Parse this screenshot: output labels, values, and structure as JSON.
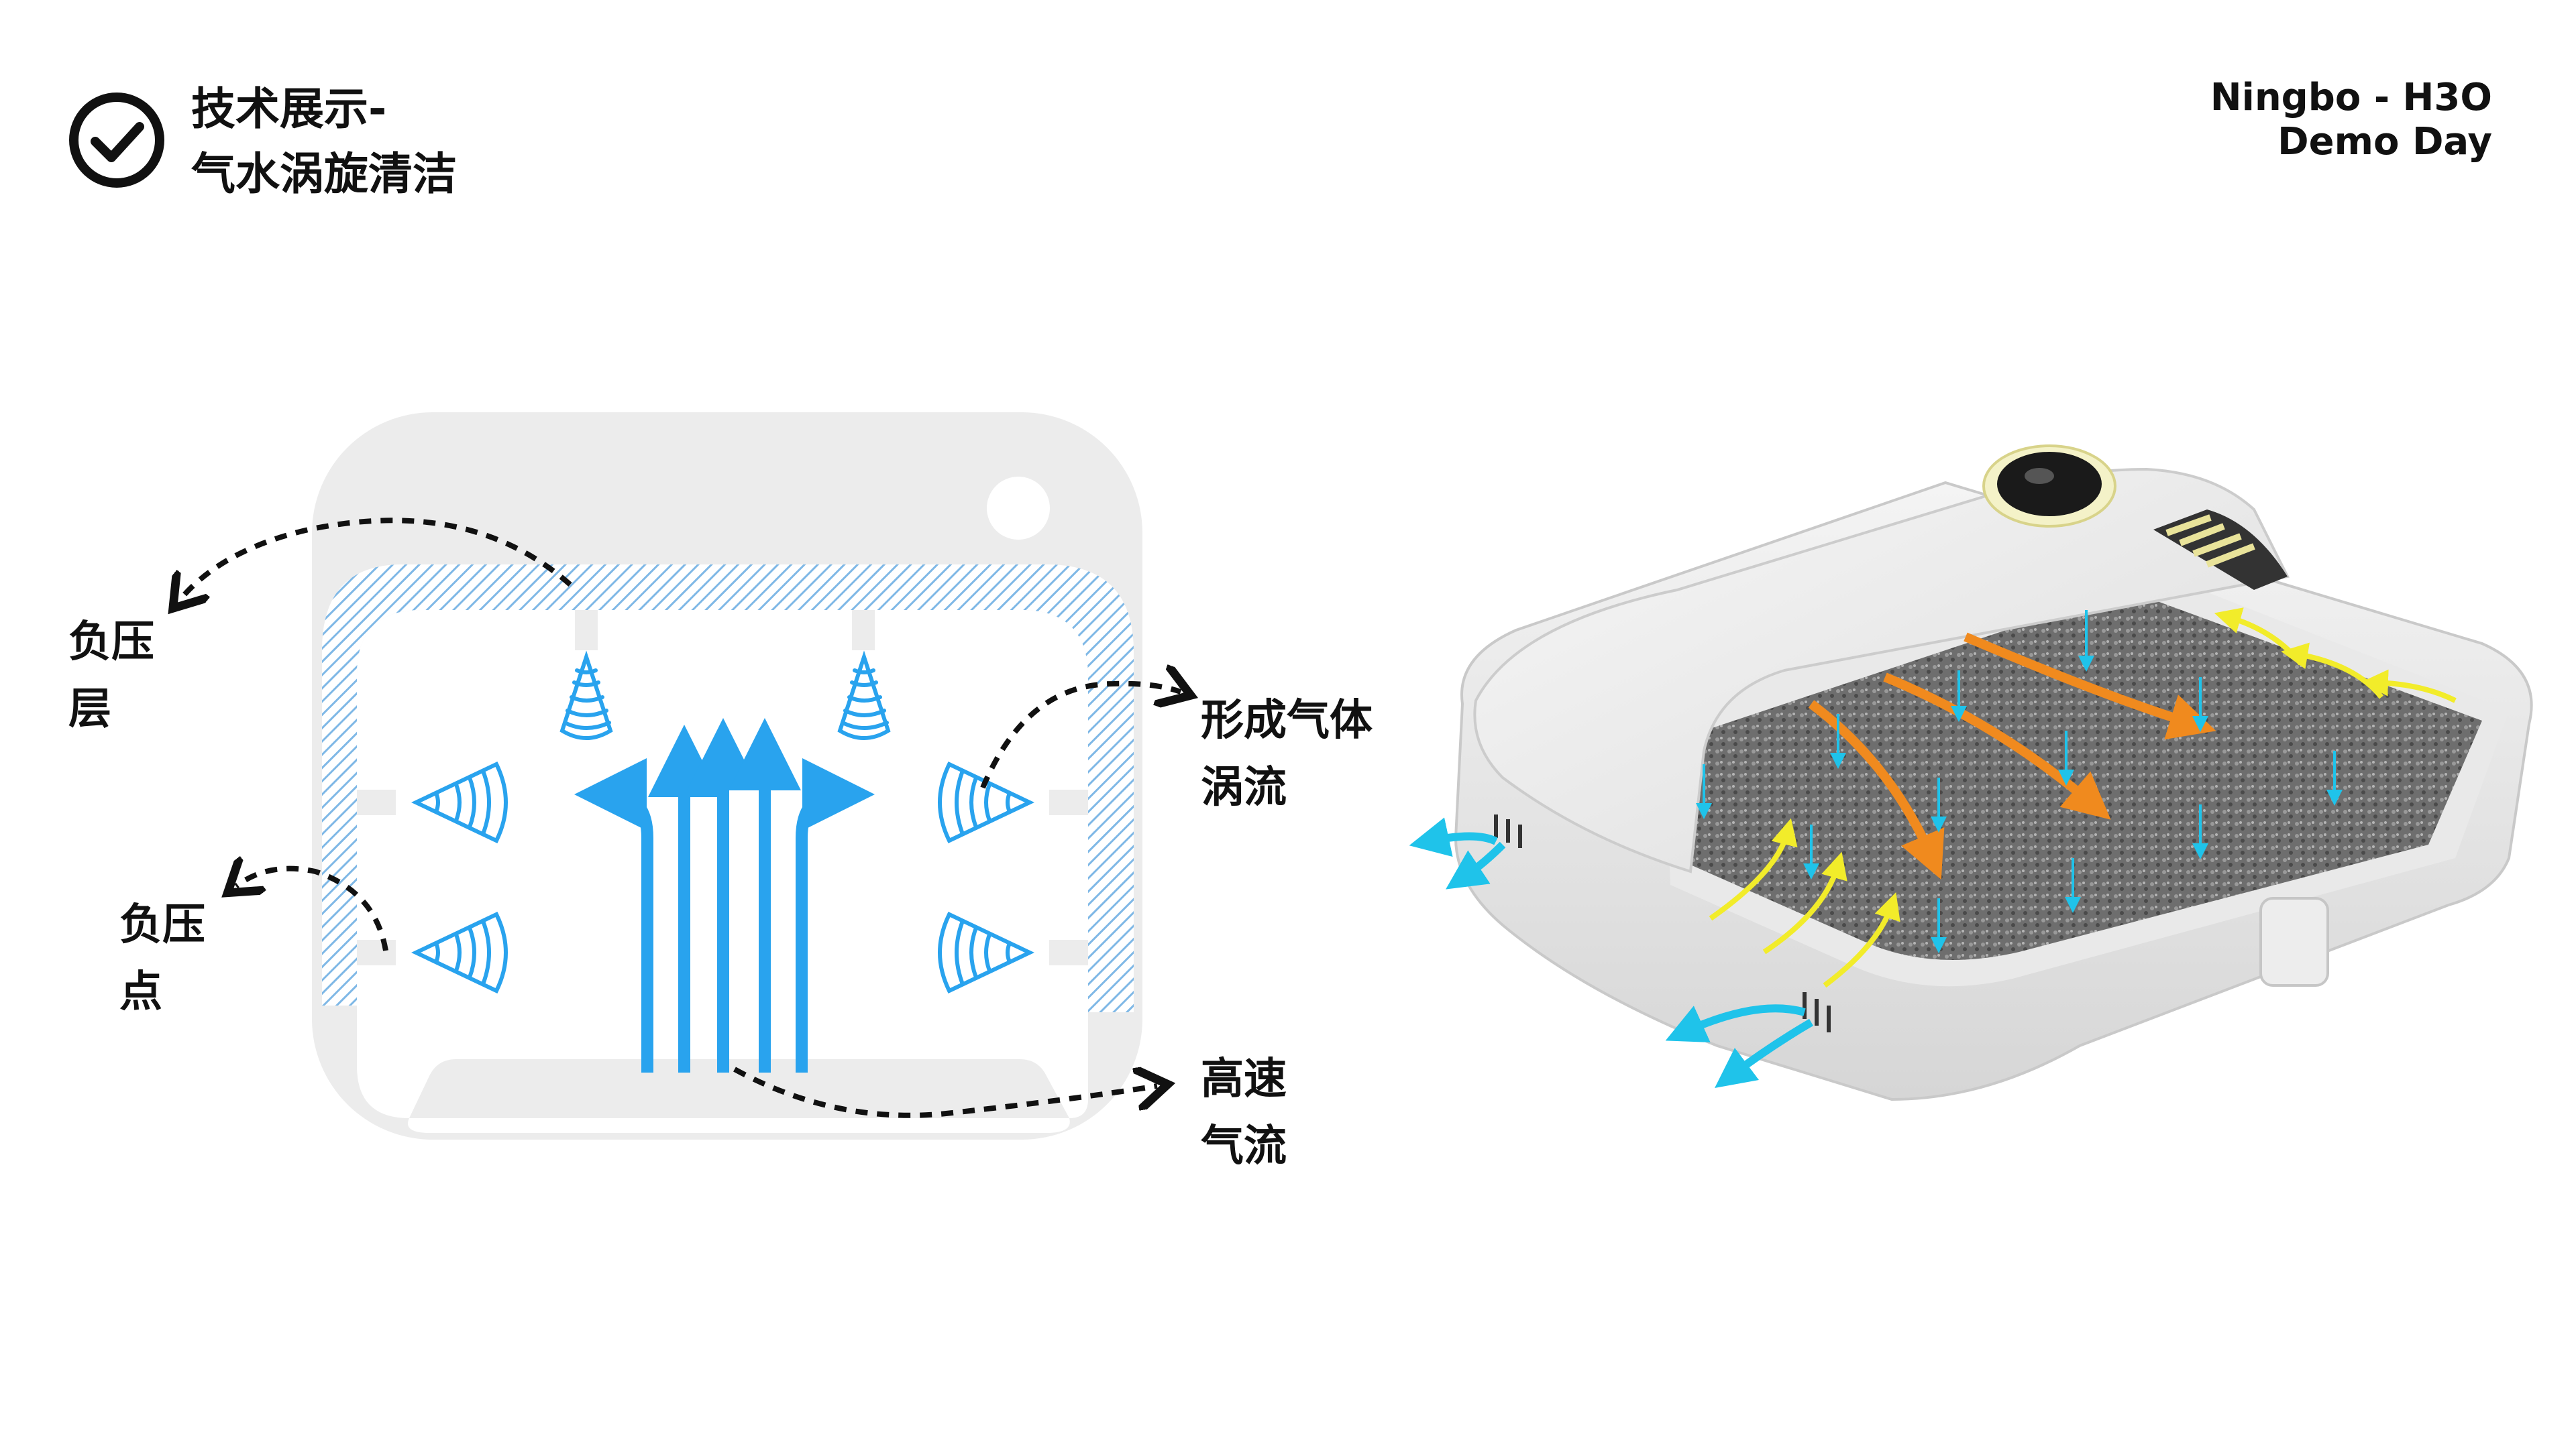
{
  "header": {
    "title_line1": "技术展示-",
    "title_line2": "气水涡旋清洁",
    "brand_line1": "Ningbo - H3O",
    "brand_line2": "Demo Day",
    "icon": "check-circle-icon"
  },
  "labels": {
    "neg_layer": [
      "负压",
      "层"
    ],
    "neg_point": [
      "负压",
      "点"
    ],
    "vortex": [
      "形成气体",
      "涡流"
    ],
    "highspeed": [
      "高速",
      "气流"
    ]
  },
  "colors": {
    "blue": "#29A3EE",
    "hatch": "#7FB8E6",
    "device_gray": "#ECECEC",
    "orange": "#F08A1E",
    "yellow": "#F2EC2A",
    "cyan": "#1FC3EA"
  }
}
